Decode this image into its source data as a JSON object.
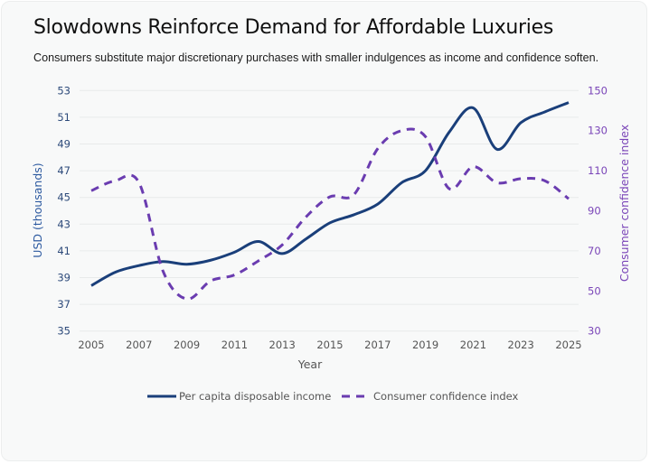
{
  "header": {
    "title": "Slowdowns Reinforce Demand for Affordable Luxuries",
    "subtitle": "Consumers substitute major discretionary purchases with smaller indulgences as income and confidence soften."
  },
  "chart_data": {
    "type": "line",
    "title": "Slowdowns Reinforce Demand for Affordable Luxuries",
    "subtitle": "Consumers substitute major discretionary purchases with smaller indulgences as income and confidence soften.",
    "xlabel": "Year",
    "ylabel": "USD (thousands)",
    "y2label": "Consumer confidence index",
    "x": [
      2005,
      2006,
      2007,
      2008,
      2009,
      2010,
      2011,
      2012,
      2013,
      2014,
      2015,
      2016,
      2017,
      2018,
      2019,
      2020,
      2021,
      2022,
      2023,
      2024,
      2025
    ],
    "xticks": [
      "2005",
      "2007",
      "2009",
      "2011",
      "2013",
      "2015",
      "2017",
      "2019",
      "2021",
      "2023",
      "2025"
    ],
    "xlim": [
      2005,
      2025
    ],
    "ylim": [
      35,
      53
    ],
    "yticks": [
      "53",
      "51",
      "49",
      "47",
      "45",
      "43",
      "41",
      "39",
      "37",
      "35"
    ],
    "y2lim": [
      30,
      150
    ],
    "y2ticks": [
      "150",
      "130",
      "110",
      "90",
      "70",
      "50",
      "30"
    ],
    "grid": true,
    "legend_position": "bottom-center",
    "series": [
      {
        "name": "Per capita disposable income",
        "axis": "left",
        "style": "solid",
        "color": "#1a3f7a",
        "values": [
          38.4,
          39.4,
          39.9,
          40.2,
          40.0,
          40.3,
          40.9,
          41.7,
          40.8,
          41.9,
          43.1,
          43.7,
          44.5,
          46.1,
          47.0,
          49.9,
          51.7,
          48.6,
          50.6,
          51.4,
          52.1
        ]
      },
      {
        "name": "Consumer confidence index",
        "axis": "right",
        "style": "dashed",
        "color": "#6a3cb0",
        "values": [
          100,
          105,
          104,
          60,
          46,
          55,
          58,
          65,
          73,
          87,
          97,
          98,
          121,
          130,
          127,
          101,
          112,
          104,
          106,
          105,
          96
        ]
      }
    ]
  },
  "colors": {
    "income_line": "#1a3f7a",
    "confidence_line": "#6a3cb0",
    "left_axis_text": "#2d4a7a",
    "right_axis_text": "#7a45b8",
    "grid": "#e8eaea",
    "card_background": "#f8f9f9"
  }
}
